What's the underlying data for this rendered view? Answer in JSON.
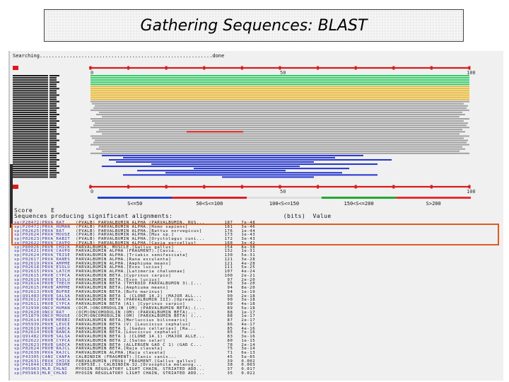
{
  "slide": {
    "title": "Gathering Sequences: BLAST"
  },
  "blast": {
    "status": "Searching..........................................................done",
    "ruler_top": [
      "0",
      "50",
      "100"
    ],
    "ruler_bottom": [
      "0",
      "50",
      "100"
    ],
    "legend": [
      {
        "label": "S<=50",
        "color": "#2244cc"
      },
      {
        "label": "50<S<=100",
        "color": "#dd2222"
      },
      {
        "label": "100<S<=150",
        "color": "#dddddd"
      },
      {
        "label": "150<S<=200",
        "color": "#22aa33"
      },
      {
        "label": "S>200",
        "color": "#e83030"
      }
    ],
    "colors": {
      "green": "#33cc66",
      "yellow": "#e8b830",
      "gray": "#a0a0a0",
      "blue": "#2233cc",
      "red": "#dd1c1c"
    },
    "header": "Sequences producing significant alignments:                              (bits)  Value",
    "header_top": "Score     E",
    "hits": [
      {
        "id": "sp|P20472|PRVA_RAT",
        "desc": "(PVALB) PARVALBUMIN ALPHA (PARVALBUMIN, RUS...",
        "score": "187",
        "e": "7e-48"
      },
      {
        "id": "sp|P20472|PRVA_HUMAN",
        "desc": "(PVALB) PARVALBUMIN ALPHA.[Homo sapiens]",
        "score": "181",
        "e": "3e-46"
      },
      {
        "id": "sp|P02625|PRVA_RAT",
        "desc": "(PVALB) PARVALBUMIN ALPHA.[Rattus norvegicus]",
        "score": "176",
        "e": "1e-44"
      },
      {
        "id": "sp|P02624|PRVA_MOUSE",
        "desc": "(PVALB) PARVALBUMIN ALPHA.[Mus sp.]",
        "score": "173",
        "e": "1e-43"
      },
      {
        "id": "sp|P02623|PRVA_RABIT",
        "desc": "(PVALB) PARVALBUMIN ALPHA.[Oryctolagus cuni...",
        "score": "172",
        "e": "3e-43"
      },
      {
        "id": "sp|P02622|PRVA_CAVPO",
        "desc": "(PVALB) PARVALBUMIN ALPHA.[Cavia porcellus]",
        "score": "168",
        "e": "3e-42"
      },
      {
        "id": "sp|P80026|PRVB_CHICK",
        "desc": "PARVALBUMIN, MUSCLE.[Gallus gallus]",
        "score": "154",
        "e": "8e-38"
      },
      {
        "id": "sp|P02621|PRVA_CAVPO",
        "desc": "PARVALBUMIN ALPHA (FRAGMENT).[Cavia...",
        "score": "132",
        "e": "1e-31"
      },
      {
        "id": "sp|P02624|PRVA_TRISE",
        "desc": "PARVALBUMIN ALPHA.[Triakis semifasciata]",
        "score": "130",
        "e": "5e-31"
      },
      {
        "id": "sp|P02617|PRVA_RANES",
        "desc": "PARVALBUMIN ALPHA.[Rana esculenta]",
        "score": "121",
        "e": "3e-28"
      },
      {
        "id": "sp|P02619|PRVA_AMPME",
        "desc": "PARVALBUMIN ALPHA.[Amphiuma means]",
        "score": "121",
        "e": "4e-28"
      },
      {
        "id": "sp|P02618|PRVA_ESOLU",
        "desc": "PARVALBUMIN ALPHA.[Esox lucius]",
        "score": "111",
        "e": "5e-25"
      },
      {
        "id": "sp|P02615|PRVA_LATCH",
        "desc": "PARVALBUMIN ALPHA.[Latimeria chalumnae]",
        "score": "107",
        "e": "4e-24"
      },
      {
        "id": "sp|P02615|PRVB_CYPCA",
        "desc": "PARVALBUMIN BETA.[Cyprinus carpio]",
        "score": "100",
        "e": "2e-21"
      },
      {
        "id": "sp|P02616|PRVB_ESOLU",
        "desc": "PARVALBUMIN BETA.[Esox lucius]",
        "score": "97",
        "e": "2e-20"
      },
      {
        "id": "sp|P02614|PRVB_THECH",
        "desc": "PARVALBUMIN BETA (THYROID PARVALBUMIN 3).[...",
        "score": "95",
        "e": "3e-20"
      },
      {
        "id": "sp|P02615|PRVB_AMPME",
        "desc": "PARVALBUMIN BETA.[Amphiuma means]",
        "score": "94",
        "e": "8e-20"
      },
      {
        "id": "sp|P02613|PRVB_BUFRE",
        "desc": "PARVALBUMIN BETA.[Bufo marinus]",
        "score": "94",
        "e": "1e-19"
      },
      {
        "id": "sp|Q91483|PRVB_SALSA",
        "desc": "PARVALBUMIN BETA 1 (CLONE 14.2) (MAJOR ALL...",
        "score": "90",
        "e": "2e-18"
      },
      {
        "id": "sp|P02612|PRVB_RANCA",
        "desc": "PARVALBUMIN BETA (PARVALBUMIN III).[Oprean...",
        "score": "90",
        "e": "3e-18"
      },
      {
        "id": "sp|P02611|PRVB_CYPCA",
        "desc": "PARVALBUMIN BETA (A1) [Cyprinus carpio]",
        "score": "89",
        "e": "4e-18"
      },
      {
        "id": "sp|P32930|ONCO_HUMAN",
        "desc": "(OCM.)ONCOMODULIN (OM) (PARVALBUMIN BETA).(...",
        "score": "89",
        "e": "5e-18"
      },
      {
        "id": "sp|P02620|ONCO_RAT",
        "desc": "(OCM)ONCOMODULIN (OM) (PARVALBUMIN BETA)...",
        "score": "88",
        "e": "1e-17"
      },
      {
        "id": "sp|P51879|ONCO_MOUSE",
        "desc": "(OCM)ONCOMODULIN (OM) (PARVALBUMIN BETA) (...",
        "score": "88",
        "e": "1e-17"
      },
      {
        "id": "sp|P02614|PRVB_MERBI",
        "desc": "PARVALBUMIN BETA.[Merluccius bilinearis]",
        "score": "87",
        "e": "2e-17"
      },
      {
        "id": "sp|P05939|PRVB_LEUCE",
        "desc": "PARVALBUMIN BETA (V) [Leuciscus cephalus]",
        "score": "86",
        "e": "4e-17"
      },
      {
        "id": "sp|P02619|PRVB_GADCA",
        "desc": "PARVALBUMIN BETA 1.[Gadus callarias] [Ra...",
        "score": "85",
        "e": "4e-16"
      },
      {
        "id": "sp|P02614|PRVB_RANCA",
        "desc": "PARVALBUMIN BETA.[Leuciscus cephalus]",
        "score": "85",
        "e": "7e-16"
      },
      {
        "id": "sp|Q91482|PRVB_SALSA",
        "desc": "PARVALBUMIN BETA 1 (CLONE 14.1) (MAJOR ALLE...",
        "score": "83",
        "e": "3e-16"
      },
      {
        "id": "sp|P02622|PRVB_CYPCA",
        "desc": "PARVALBUMIN BETA 2.[Salmo salar]",
        "score": "80",
        "e": "1e-15"
      },
      {
        "id": "sp|P02623|PRVB_GADCA",
        "desc": "PARVALBUMIN BETA (ALLERGEN GAD C 1) (GAD C...",
        "score": "78",
        "e": "2e-14"
      },
      {
        "id": "sp|P02624|PRVB_RAJCL",
        "desc": "PARVALBUMIN BETA.[Raja clavata]",
        "score": "75",
        "e": "3e-14"
      },
      {
        "id": "sp|P02630|PRVA_RAJCL",
        "desc": "PARVALBUMIN ALPHA.[Raja clavata]",
        "score": "71",
        "e": "6e-13"
      },
      {
        "id": "sp|P43305|CANI_CANFA",
        "desc": "CALBINDIN (FRAGMENT).[Canis canis...",
        "score": "45",
        "e": "5e-05"
      },
      {
        "id": "sp|P02631|PRVA_CHICK",
        "desc": "PARVALBUMIN (PRVA) FRAGMENT.[Gallus gallus]",
        "score": "39",
        "e": "0.002"
      },
      {
        "id": "sp|P41044|CB32_DROME",
        "desc": "(CBP53E.) CALBINDIN-32.[Drosophila melanog...",
        "score": "38",
        "e": "0.003"
      },
      {
        "id": "sp|P05963|MLR_CHLNI",
        "desc": "MYOSIN REGULATORY LIGHT CHAIN, STRIATED ADD...",
        "score": "37",
        "e": "0.017"
      },
      {
        "id": "sp|P05963|MLR_CHLNI",
        "desc": "MYOSIN REGULATORY LIGHT CHAIN, STRIATED ADD...",
        "score": "35",
        "e": "0.022"
      }
    ]
  }
}
